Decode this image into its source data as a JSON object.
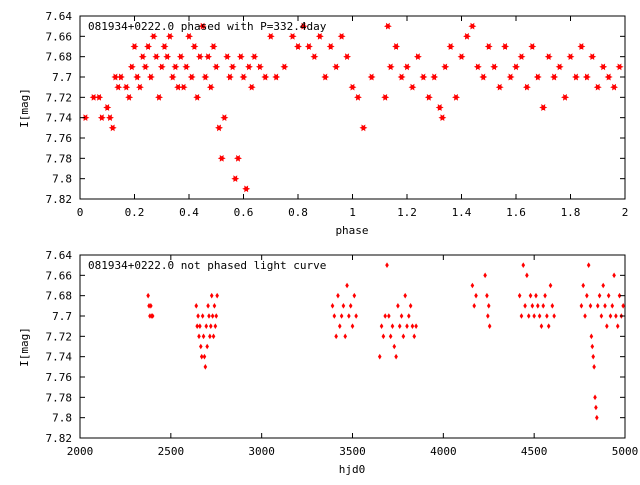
{
  "chart_data": [
    {
      "type": "scatter",
      "title": "081934+0222.0 phased with P=332.4day",
      "xlabel": "phase",
      "ylabel": "I[mag]",
      "xlim": [
        0,
        2
      ],
      "ylim": [
        7.82,
        7.64
      ],
      "y_inverted": true,
      "x_ticks": [
        "0",
        "0.2",
        "0.4",
        "0.6",
        "0.8",
        "1",
        "1.2",
        "1.4",
        "1.6",
        "1.8",
        "2"
      ],
      "y_ticks": [
        "7.64",
        "7.66",
        "7.68",
        "7.7",
        "7.72",
        "7.74",
        "7.76",
        "7.78",
        "7.8",
        "7.82"
      ],
      "grid": false,
      "marker_color": "#ff0000",
      "series": [
        {
          "points": [
            [
              0.02,
              7.74
            ],
            [
              0.05,
              7.72
            ],
            [
              0.07,
              7.72
            ],
            [
              0.08,
              7.74
            ],
            [
              0.1,
              7.73
            ],
            [
              0.11,
              7.74
            ],
            [
              0.12,
              7.75
            ],
            [
              0.13,
              7.7
            ],
            [
              0.14,
              7.71
            ],
            [
              0.15,
              7.7
            ],
            [
              0.17,
              7.71
            ],
            [
              0.18,
              7.72
            ],
            [
              0.19,
              7.69
            ],
            [
              0.2,
              7.67
            ],
            [
              0.21,
              7.7
            ],
            [
              0.22,
              7.71
            ],
            [
              0.23,
              7.68
            ],
            [
              0.24,
              7.69
            ],
            [
              0.25,
              7.67
            ],
            [
              0.26,
              7.7
            ],
            [
              0.27,
              7.66
            ],
            [
              0.28,
              7.68
            ],
            [
              0.29,
              7.72
            ],
            [
              0.3,
              7.69
            ],
            [
              0.31,
              7.67
            ],
            [
              0.32,
              7.68
            ],
            [
              0.33,
              7.66
            ],
            [
              0.34,
              7.7
            ],
            [
              0.35,
              7.69
            ],
            [
              0.36,
              7.71
            ],
            [
              0.37,
              7.68
            ],
            [
              0.38,
              7.71
            ],
            [
              0.39,
              7.69
            ],
            [
              0.4,
              7.66
            ],
            [
              0.41,
              7.7
            ],
            [
              0.42,
              7.67
            ],
            [
              0.43,
              7.72
            ],
            [
              0.44,
              7.68
            ],
            [
              0.45,
              7.65
            ],
            [
              0.46,
              7.7
            ],
            [
              0.47,
              7.68
            ],
            [
              0.48,
              7.71
            ],
            [
              0.49,
              7.67
            ],
            [
              0.5,
              7.69
            ],
            [
              0.51,
              7.75
            ],
            [
              0.52,
              7.78
            ],
            [
              0.53,
              7.74
            ],
            [
              0.54,
              7.68
            ],
            [
              0.55,
              7.7
            ],
            [
              0.56,
              7.69
            ],
            [
              0.57,
              7.8
            ],
            [
              0.58,
              7.78
            ],
            [
              0.59,
              7.68
            ],
            [
              0.6,
              7.7
            ],
            [
              0.61,
              7.81
            ],
            [
              0.62,
              7.69
            ],
            [
              0.63,
              7.71
            ],
            [
              0.64,
              7.68
            ],
            [
              0.66,
              7.69
            ],
            [
              0.68,
              7.7
            ],
            [
              0.7,
              7.66
            ],
            [
              0.72,
              7.7
            ],
            [
              0.75,
              7.69
            ],
            [
              0.78,
              7.66
            ],
            [
              0.8,
              7.67
            ],
            [
              0.82,
              7.65
            ],
            [
              0.84,
              7.67
            ],
            [
              0.86,
              7.68
            ],
            [
              0.88,
              7.66
            ],
            [
              0.9,
              7.7
            ],
            [
              0.92,
              7.67
            ],
            [
              0.94,
              7.69
            ],
            [
              0.96,
              7.66
            ],
            [
              0.98,
              7.68
            ],
            [
              1.0,
              7.71
            ],
            [
              1.02,
              7.72
            ],
            [
              1.04,
              7.75
            ],
            [
              1.07,
              7.7
            ],
            [
              1.12,
              7.72
            ],
            [
              1.13,
              7.65
            ],
            [
              1.14,
              7.69
            ],
            [
              1.16,
              7.67
            ],
            [
              1.18,
              7.7
            ],
            [
              1.2,
              7.69
            ],
            [
              1.22,
              7.71
            ],
            [
              1.24,
              7.68
            ],
            [
              1.26,
              7.7
            ],
            [
              1.28,
              7.72
            ],
            [
              1.3,
              7.7
            ],
            [
              1.32,
              7.73
            ],
            [
              1.33,
              7.74
            ],
            [
              1.34,
              7.69
            ],
            [
              1.36,
              7.67
            ],
            [
              1.38,
              7.72
            ],
            [
              1.4,
              7.68
            ],
            [
              1.42,
              7.66
            ],
            [
              1.44,
              7.65
            ],
            [
              1.46,
              7.69
            ],
            [
              1.48,
              7.7
            ],
            [
              1.5,
              7.67
            ],
            [
              1.52,
              7.69
            ],
            [
              1.54,
              7.71
            ],
            [
              1.56,
              7.67
            ],
            [
              1.58,
              7.7
            ],
            [
              1.6,
              7.69
            ],
            [
              1.62,
              7.68
            ],
            [
              1.64,
              7.71
            ],
            [
              1.66,
              7.67
            ],
            [
              1.68,
              7.7
            ],
            [
              1.7,
              7.73
            ],
            [
              1.72,
              7.68
            ],
            [
              1.74,
              7.7
            ],
            [
              1.76,
              7.69
            ],
            [
              1.78,
              7.72
            ],
            [
              1.8,
              7.68
            ],
            [
              1.82,
              7.7
            ],
            [
              1.84,
              7.67
            ],
            [
              1.86,
              7.7
            ],
            [
              1.88,
              7.68
            ],
            [
              1.9,
              7.71
            ],
            [
              1.92,
              7.69
            ],
            [
              1.94,
              7.7
            ],
            [
              1.96,
              7.71
            ],
            [
              1.98,
              7.69
            ]
          ]
        }
      ]
    },
    {
      "type": "scatter",
      "title": "081934+0222.0 not phased light curve",
      "xlabel": "hjd0",
      "ylabel": "I[mag]",
      "xlim": [
        2000,
        5000
      ],
      "ylim": [
        7.82,
        7.64
      ],
      "y_inverted": true,
      "x_ticks": [
        "2000",
        "2500",
        "3000",
        "3500",
        "4000",
        "4500",
        "5000"
      ],
      "y_ticks": [
        "7.64",
        "7.66",
        "7.68",
        "7.7",
        "7.72",
        "7.74",
        "7.76",
        "7.78",
        "7.8",
        "7.82"
      ],
      "grid": false,
      "marker_color": "#ff0000",
      "series": [
        {
          "points": [
            [
              2375,
              7.68
            ],
            [
              2380,
              7.69
            ],
            [
              2385,
              7.7
            ],
            [
              2390,
              7.69
            ],
            [
              2395,
              7.7
            ],
            [
              2400,
              7.7
            ],
            [
              2640,
              7.69
            ],
            [
              2645,
              7.71
            ],
            [
              2650,
              7.7
            ],
            [
              2655,
              7.72
            ],
            [
              2660,
              7.71
            ],
            [
              2665,
              7.73
            ],
            [
              2670,
              7.74
            ],
            [
              2675,
              7.7
            ],
            [
              2680,
              7.72
            ],
            [
              2685,
              7.74
            ],
            [
              2690,
              7.75
            ],
            [
              2695,
              7.71
            ],
            [
              2700,
              7.73
            ],
            [
              2705,
              7.69
            ],
            [
              2710,
              7.7
            ],
            [
              2715,
              7.72
            ],
            [
              2720,
              7.71
            ],
            [
              2725,
              7.68
            ],
            [
              2730,
              7.7
            ],
            [
              2735,
              7.72
            ],
            [
              2740,
              7.69
            ],
            [
              2745,
              7.71
            ],
            [
              2750,
              7.7
            ],
            [
              2755,
              7.68
            ],
            [
              3390,
              7.69
            ],
            [
              3400,
              7.7
            ],
            [
              3410,
              7.72
            ],
            [
              3420,
              7.68
            ],
            [
              3430,
              7.71
            ],
            [
              3440,
              7.7
            ],
            [
              3450,
              7.69
            ],
            [
              3460,
              7.72
            ],
            [
              3470,
              7.67
            ],
            [
              3480,
              7.7
            ],
            [
              3490,
              7.69
            ],
            [
              3500,
              7.71
            ],
            [
              3510,
              7.68
            ],
            [
              3520,
              7.7
            ],
            [
              3650,
              7.74
            ],
            [
              3660,
              7.71
            ],
            [
              3670,
              7.72
            ],
            [
              3680,
              7.7
            ],
            [
              3690,
              7.65
            ],
            [
              3700,
              7.7
            ],
            [
              3710,
              7.72
            ],
            [
              3720,
              7.71
            ],
            [
              3730,
              7.73
            ],
            [
              3740,
              7.74
            ],
            [
              3750,
              7.69
            ],
            [
              3760,
              7.71
            ],
            [
              3770,
              7.7
            ],
            [
              3780,
              7.72
            ],
            [
              3790,
              7.68
            ],
            [
              3800,
              7.71
            ],
            [
              3810,
              7.7
            ],
            [
              3820,
              7.69
            ],
            [
              3830,
              7.71
            ],
            [
              3840,
              7.72
            ],
            [
              3850,
              7.71
            ],
            [
              4160,
              7.67
            ],
            [
              4170,
              7.69
            ],
            [
              4180,
              7.68
            ],
            [
              4230,
              7.66
            ],
            [
              4240,
              7.68
            ],
            [
              4245,
              7.7
            ],
            [
              4250,
              7.69
            ],
            [
              4255,
              7.71
            ],
            [
              4420,
              7.68
            ],
            [
              4430,
              7.7
            ],
            [
              4440,
              7.65
            ],
            [
              4450,
              7.69
            ],
            [
              4460,
              7.66
            ],
            [
              4470,
              7.7
            ],
            [
              4480,
              7.68
            ],
            [
              4490,
              7.69
            ],
            [
              4500,
              7.7
            ],
            [
              4510,
              7.68
            ],
            [
              4520,
              7.69
            ],
            [
              4530,
              7.7
            ],
            [
              4540,
              7.71
            ],
            [
              4550,
              7.69
            ],
            [
              4560,
              7.68
            ],
            [
              4570,
              7.7
            ],
            [
              4580,
              7.71
            ],
            [
              4590,
              7.67
            ],
            [
              4600,
              7.69
            ],
            [
              4610,
              7.7
            ],
            [
              4760,
              7.69
            ],
            [
              4770,
              7.67
            ],
            [
              4780,
              7.7
            ],
            [
              4790,
              7.68
            ],
            [
              4800,
              7.65
            ],
            [
              4810,
              7.69
            ],
            [
              4815,
              7.72
            ],
            [
              4820,
              7.73
            ],
            [
              4825,
              7.74
            ],
            [
              4830,
              7.75
            ],
            [
              4835,
              7.78
            ],
            [
              4840,
              7.79
            ],
            [
              4845,
              7.8
            ],
            [
              4850,
              7.69
            ],
            [
              4860,
              7.68
            ],
            [
              4870,
              7.7
            ],
            [
              4880,
              7.67
            ],
            [
              4890,
              7.69
            ],
            [
              4900,
              7.71
            ],
            [
              4910,
              7.68
            ],
            [
              4920,
              7.7
            ],
            [
              4930,
              7.69
            ],
            [
              4940,
              7.66
            ],
            [
              4950,
              7.7
            ],
            [
              4960,
              7.71
            ],
            [
              4970,
              7.68
            ],
            [
              4980,
              7.7
            ],
            [
              4990,
              7.69
            ]
          ]
        }
      ]
    }
  ]
}
